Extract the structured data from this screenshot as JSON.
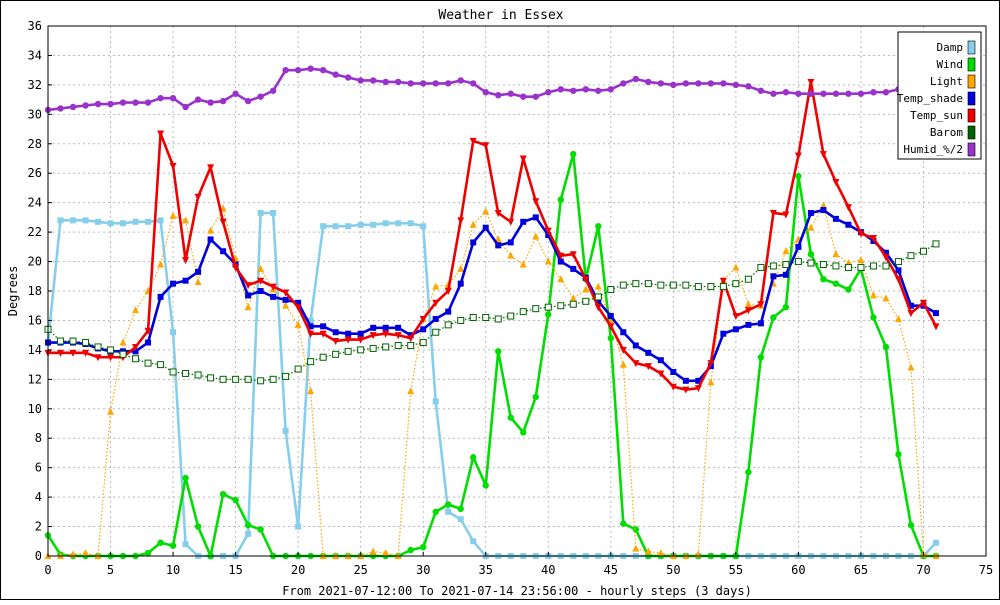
{
  "chart_data": {
    "type": "line",
    "title": "Weather in Essex",
    "xlabel": "From 2021-07-12:00 To 2021-07-14 23:56:00 - hourly steps (3 days)",
    "ylabel": "Degrees",
    "xlim": [
      0,
      75
    ],
    "ylim": [
      0,
      36
    ],
    "x_ticks": [
      0,
      5,
      10,
      15,
      20,
      25,
      30,
      35,
      40,
      45,
      50,
      55,
      60,
      65,
      70,
      75
    ],
    "y_ticks": [
      0,
      2,
      4,
      6,
      8,
      10,
      12,
      14,
      16,
      18,
      20,
      22,
      24,
      26,
      28,
      30,
      32,
      34,
      36
    ],
    "grid": true,
    "legend_position": "top-right",
    "x": [
      0,
      1,
      2,
      3,
      4,
      5,
      6,
      7,
      8,
      9,
      10,
      11,
      12,
      13,
      14,
      15,
      16,
      17,
      18,
      19,
      20,
      21,
      22,
      23,
      24,
      25,
      26,
      27,
      28,
      29,
      30,
      31,
      32,
      33,
      34,
      35,
      36,
      37,
      38,
      39,
      40,
      41,
      42,
      43,
      44,
      45,
      46,
      47,
      48,
      49,
      50,
      51,
      52,
      53,
      54,
      55,
      56,
      57,
      58,
      59,
      60,
      61,
      62,
      63,
      64,
      65,
      66,
      67,
      68,
      69,
      70,
      71
    ],
    "series": [
      {
        "name": "Damp",
        "color": "#87ceeb",
        "marker": "square",
        "style": "solid",
        "values": [
          14.5,
          22.8,
          22.8,
          22.8,
          22.7,
          22.6,
          22.6,
          22.7,
          22.7,
          22.8,
          15.2,
          0.8,
          0,
          0,
          0,
          0,
          1.5,
          23.3,
          23.3,
          8.5,
          2,
          16,
          22.4,
          22.4,
          22.4,
          22.5,
          22.5,
          22.6,
          22.6,
          22.6,
          22.4,
          10.5,
          3,
          2.5,
          1,
          0,
          0,
          0,
          0,
          0,
          0,
          0,
          0,
          0,
          0,
          0,
          0,
          0,
          0,
          0,
          0,
          0,
          0,
          0,
          0,
          0,
          0,
          0,
          0,
          0,
          0,
          0,
          0,
          0,
          0,
          0,
          0,
          0,
          0,
          0,
          0,
          0.9
        ]
      },
      {
        "name": "Wind",
        "color": "#00dd00",
        "marker": "circle",
        "style": "solid",
        "values": [
          1.4,
          0.1,
          0,
          0,
          0,
          0,
          0,
          0,
          0.2,
          0.9,
          0.7,
          5.3,
          2,
          0,
          4.2,
          3.8,
          2.1,
          1.8,
          0,
          0,
          0,
          0,
          0,
          0,
          0,
          0,
          0,
          0,
          0,
          0.4,
          0.6,
          3,
          3.5,
          3.2,
          6.7,
          4.8,
          13.9,
          9.4,
          8.4,
          10.8,
          16.4,
          24.2,
          27.3,
          18.8,
          22.4,
          14.8,
          2.2,
          1.8,
          0,
          0,
          0,
          0,
          0,
          0,
          0,
          0,
          5.7,
          13.5,
          16.2,
          16.9,
          25.8,
          20.5,
          18.8,
          18.5,
          18.1,
          19.5,
          16.2,
          14.2,
          6.9,
          2.1,
          0,
          0
        ]
      },
      {
        "name": "Light",
        "color": "#ffa500",
        "marker": "triangle",
        "style": "dotted",
        "values": [
          0,
          0,
          0.1,
          0.2,
          0,
          9.8,
          14.5,
          16.7,
          18,
          19.8,
          23.1,
          22.8,
          18.6,
          22.1,
          23.6,
          20.2,
          16.9,
          19.5,
          18.1,
          17,
          15.7,
          11.2,
          0,
          0,
          0,
          0,
          0.3,
          0.2,
          0,
          11.2,
          16.1,
          18.3,
          18.4,
          19.5,
          22.5,
          23.4,
          21.5,
          20.4,
          19.8,
          21.7,
          20,
          18.8,
          17.5,
          18.1,
          18.3,
          16,
          13,
          0.5,
          0.3,
          0.2,
          0,
          0,
          0.1,
          11.8,
          18.7,
          19.6,
          17.1,
          17,
          18.5,
          20.7,
          21.5,
          22.3,
          23.8,
          20.5,
          19.9,
          20.1,
          17.7,
          17.5,
          16.1,
          12.8,
          0.1,
          0
        ]
      },
      {
        "name": "Temp_shade",
        "color": "#0000dd",
        "marker": "square",
        "style": "solid",
        "values": [
          14.5,
          14.5,
          14.5,
          14.4,
          14.1,
          13.9,
          13.9,
          13.9,
          14.5,
          17.6,
          18.5,
          18.7,
          19.3,
          21.5,
          20.7,
          19.8,
          17.7,
          18,
          17.6,
          17.4,
          17.2,
          15.6,
          15.6,
          15.2,
          15.1,
          15.1,
          15.5,
          15.5,
          15.5,
          15,
          15.4,
          16.1,
          16.6,
          18.5,
          21.3,
          22.3,
          21.1,
          21.3,
          22.7,
          23,
          21.8,
          20,
          19.5,
          18.9,
          17.3,
          16.3,
          15.2,
          14.3,
          13.8,
          13.3,
          12.5,
          11.9,
          11.9,
          12.9,
          15.1,
          15.4,
          15.7,
          15.8,
          19,
          19.1,
          21,
          23.3,
          23.5,
          22.9,
          22.5,
          22,
          21.4,
          20.6,
          19.4,
          17,
          17,
          16.5
        ]
      },
      {
        "name": "Temp_sun",
        "color": "#ee0000",
        "marker": "triangle-down",
        "style": "solid",
        "values": [
          13.8,
          13.8,
          13.8,
          13.8,
          13.5,
          13.5,
          13.5,
          14.2,
          15.3,
          28.7,
          26.5,
          20.1,
          24.4,
          26.4,
          22.7,
          19.6,
          18.4,
          18.7,
          18.3,
          17.9,
          16.9,
          15.1,
          15.1,
          14.6,
          14.7,
          14.7,
          15,
          15.1,
          15,
          14.8,
          16.1,
          17.2,
          18,
          22.8,
          28.2,
          27.9,
          23.3,
          22.7,
          27,
          24.1,
          22.1,
          20.4,
          20.5,
          18.8,
          16.9,
          15.6,
          14,
          13.1,
          12.9,
          12.4,
          11.5,
          11.3,
          11.4,
          13.1,
          18.7,
          16.3,
          16.7,
          17.1,
          23.3,
          23.2,
          27.2,
          32.2,
          27.3,
          25.4,
          23.7,
          21.9,
          21.6,
          20.3,
          18.8,
          16.5,
          17.2,
          15.6
        ]
      },
      {
        "name": "Barom",
        "color": "#006400",
        "marker": "open-square",
        "style": "dotted",
        "values": [
          15.4,
          14.6,
          14.6,
          14.5,
          14.2,
          14,
          13.7,
          13.4,
          13.1,
          13,
          12.5,
          12.4,
          12.3,
          12.1,
          12,
          12,
          12,
          11.9,
          12,
          12.2,
          12.7,
          13.2,
          13.5,
          13.7,
          13.9,
          14,
          14.1,
          14.2,
          14.3,
          14.3,
          14.5,
          15.2,
          15.7,
          16,
          16.2,
          16.2,
          16.1,
          16.3,
          16.6,
          16.8,
          16.9,
          17,
          17.1,
          17.3,
          17.6,
          18.1,
          18.4,
          18.5,
          18.5,
          18.4,
          18.4,
          18.4,
          18.3,
          18.3,
          18.3,
          18.5,
          18.8,
          19.6,
          19.7,
          19.8,
          20,
          19.9,
          19.8,
          19.7,
          19.6,
          19.6,
          19.7,
          19.7,
          20,
          20.4,
          20.7,
          21.2
        ]
      },
      {
        "name": "Humid_%/2",
        "color": "#9932cc",
        "marker": "circle",
        "style": "solid",
        "values": [
          30.3,
          30.4,
          30.5,
          30.6,
          30.7,
          30.7,
          30.8,
          30.8,
          30.8,
          31.1,
          31.1,
          30.5,
          31,
          30.8,
          30.9,
          31.4,
          30.9,
          31.2,
          31.6,
          33,
          33,
          33.1,
          33,
          32.7,
          32.5,
          32.3,
          32.3,
          32.2,
          32.2,
          32.1,
          32.1,
          32.1,
          32.1,
          32.3,
          32.1,
          31.5,
          31.3,
          31.4,
          31.2,
          31.2,
          31.5,
          31.7,
          31.6,
          31.7,
          31.6,
          31.7,
          32.1,
          32.4,
          32.2,
          32.1,
          32,
          32.1,
          32.1,
          32.1,
          32.1,
          32,
          31.9,
          31.6,
          31.4,
          31.5,
          31.4,
          31.4,
          31.4,
          31.4,
          31.4,
          31.4,
          31.5,
          31.5,
          31.7,
          31.8,
          31.8,
          31.8
        ]
      }
    ]
  }
}
